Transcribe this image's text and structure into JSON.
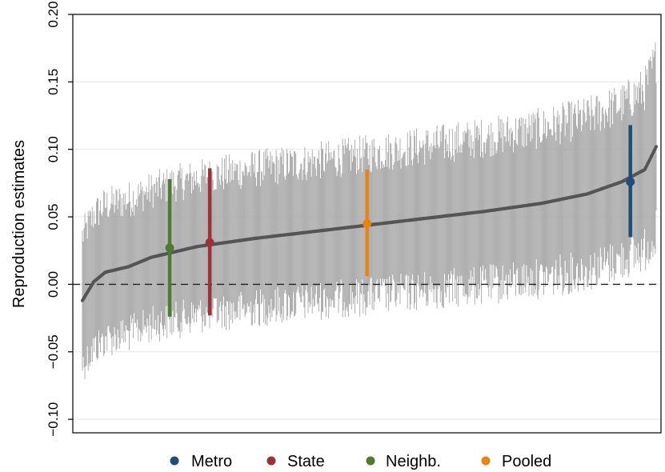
{
  "chart_data": {
    "type": "scatter",
    "title": "",
    "xlabel": "",
    "ylabel": "Reproduction estimates",
    "ylim": [
      -0.11,
      0.2
    ],
    "yticks": [
      -0.1,
      -0.05,
      0.0,
      0.05,
      0.1,
      0.15,
      0.2
    ],
    "ytick_labels": [
      "−0.10",
      "−0.05",
      "0.00",
      "0.05",
      "0.10",
      "0.15",
      "0.20"
    ],
    "reference_line": {
      "y": 0.0,
      "style": "dashed"
    },
    "grid": true,
    "legend_placement": "bottom",
    "background_estimates": {
      "count": 700,
      "color": "#555555",
      "ci_color": "#a6a6a6",
      "quantiles": [
        {
          "q": 0.0,
          "estimate": -0.012,
          "ci_halfwidth": 0.048
        },
        {
          "q": 0.02,
          "estimate": 0.002,
          "ci_halfwidth": 0.05
        },
        {
          "q": 0.04,
          "estimate": 0.009,
          "ci_halfwidth": 0.05
        },
        {
          "q": 0.08,
          "estimate": 0.013,
          "ci_halfwidth": 0.05
        },
        {
          "q": 0.12,
          "estimate": 0.02,
          "ci_halfwidth": 0.05
        },
        {
          "q": 0.16,
          "estimate": 0.024,
          "ci_halfwidth": 0.051
        },
        {
          "q": 0.2,
          "estimate": 0.028,
          "ci_halfwidth": 0.051
        },
        {
          "q": 0.3,
          "estimate": 0.034,
          "ci_halfwidth": 0.052
        },
        {
          "q": 0.4,
          "estimate": 0.039,
          "ci_halfwidth": 0.052
        },
        {
          "q": 0.5,
          "estimate": 0.044,
          "ci_halfwidth": 0.053
        },
        {
          "q": 0.6,
          "estimate": 0.049,
          "ci_halfwidth": 0.054
        },
        {
          "q": 0.7,
          "estimate": 0.054,
          "ci_halfwidth": 0.055
        },
        {
          "q": 0.8,
          "estimate": 0.06,
          "ci_halfwidth": 0.056
        },
        {
          "q": 0.88,
          "estimate": 0.067,
          "ci_halfwidth": 0.057
        },
        {
          "q": 0.94,
          "estimate": 0.076,
          "ci_halfwidth": 0.058
        },
        {
          "q": 0.98,
          "estimate": 0.085,
          "ci_halfwidth": 0.06
        },
        {
          "q": 1.0,
          "estimate": 0.102,
          "ci_halfwidth": 0.065
        }
      ]
    },
    "series": [
      {
        "name": "Metro",
        "color": "#1f4e79",
        "q": 0.955,
        "estimate": 0.076,
        "ci": [
          0.035,
          0.118
        ]
      },
      {
        "name": "State",
        "color": "#9c3238",
        "q": 0.222,
        "estimate": 0.031,
        "ci": [
          -0.023,
          0.086
        ]
      },
      {
        "name": "Neighb.",
        "color": "#4f7a32",
        "q": 0.152,
        "estimate": 0.027,
        "ci": [
          -0.024,
          0.078
        ]
      },
      {
        "name": "Pooled",
        "color": "#e8830f",
        "q": 0.496,
        "estimate": 0.045,
        "ci": [
          0.006,
          0.085
        ]
      }
    ],
    "legend_order": [
      "Metro",
      "State",
      "Neighb.",
      "Pooled"
    ]
  }
}
